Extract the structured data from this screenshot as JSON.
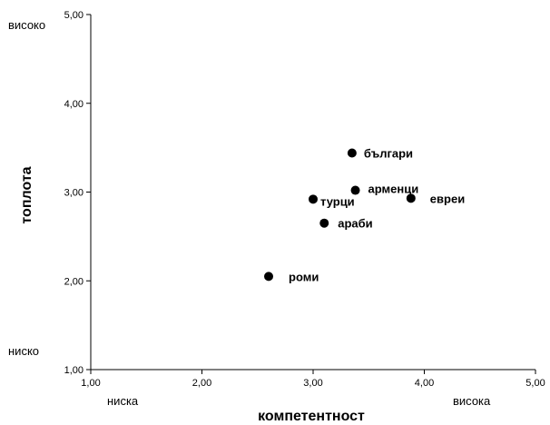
{
  "chart_data": {
    "type": "scatter",
    "title": "",
    "xlabel": "компетентност",
    "ylabel": "топлота",
    "xlim": [
      1.0,
      5.0
    ],
    "ylim": [
      1.0,
      5.0
    ],
    "x_ticks": [
      "1,00",
      "2,00",
      "3,00",
      "4,00",
      "5,00"
    ],
    "y_ticks": [
      "1,00",
      "2,00",
      "3,00",
      "4,00",
      "5,00"
    ],
    "x_low_label": "ниска",
    "x_high_label": "висока",
    "y_low_label": "ниско",
    "y_high_label": "високо",
    "grid": false,
    "points": [
      {
        "label": "българи",
        "x": 3.35,
        "y": 3.44
      },
      {
        "label": "арменци",
        "x": 3.38,
        "y": 3.02
      },
      {
        "label": "евреи",
        "x": 3.88,
        "y": 2.93
      },
      {
        "label": "турци",
        "x": 3.0,
        "y": 2.92
      },
      {
        "label": "араби",
        "x": 3.1,
        "y": 2.65
      },
      {
        "label": "роми",
        "x": 2.6,
        "y": 2.05
      }
    ],
    "marker_color": "#000000"
  }
}
